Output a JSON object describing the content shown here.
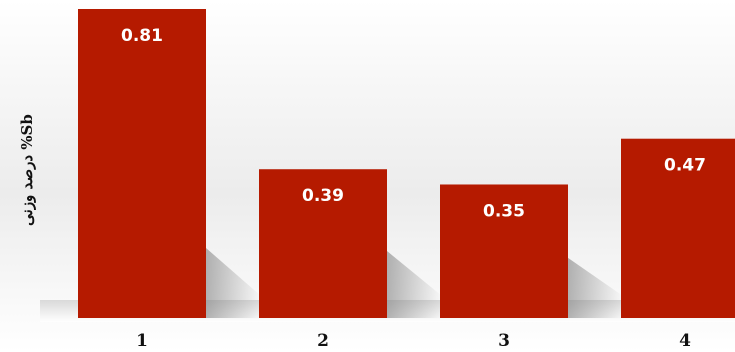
{
  "chart_data": {
    "type": "bar",
    "categories": [
      "1",
      "2",
      "3",
      "4"
    ],
    "values": [
      0.81,
      0.39,
      0.35,
      0.47
    ],
    "value_labels": [
      "0.81",
      "0.39",
      "0.35",
      "0.47"
    ],
    "title": "",
    "xlabel": "",
    "ylabel": "Sb% درصد وزنی",
    "ylim": [
      0,
      0.81
    ],
    "grid": false,
    "legend": "none",
    "bar_color": "#B51A00",
    "background": "gradient light gray to white"
  }
}
